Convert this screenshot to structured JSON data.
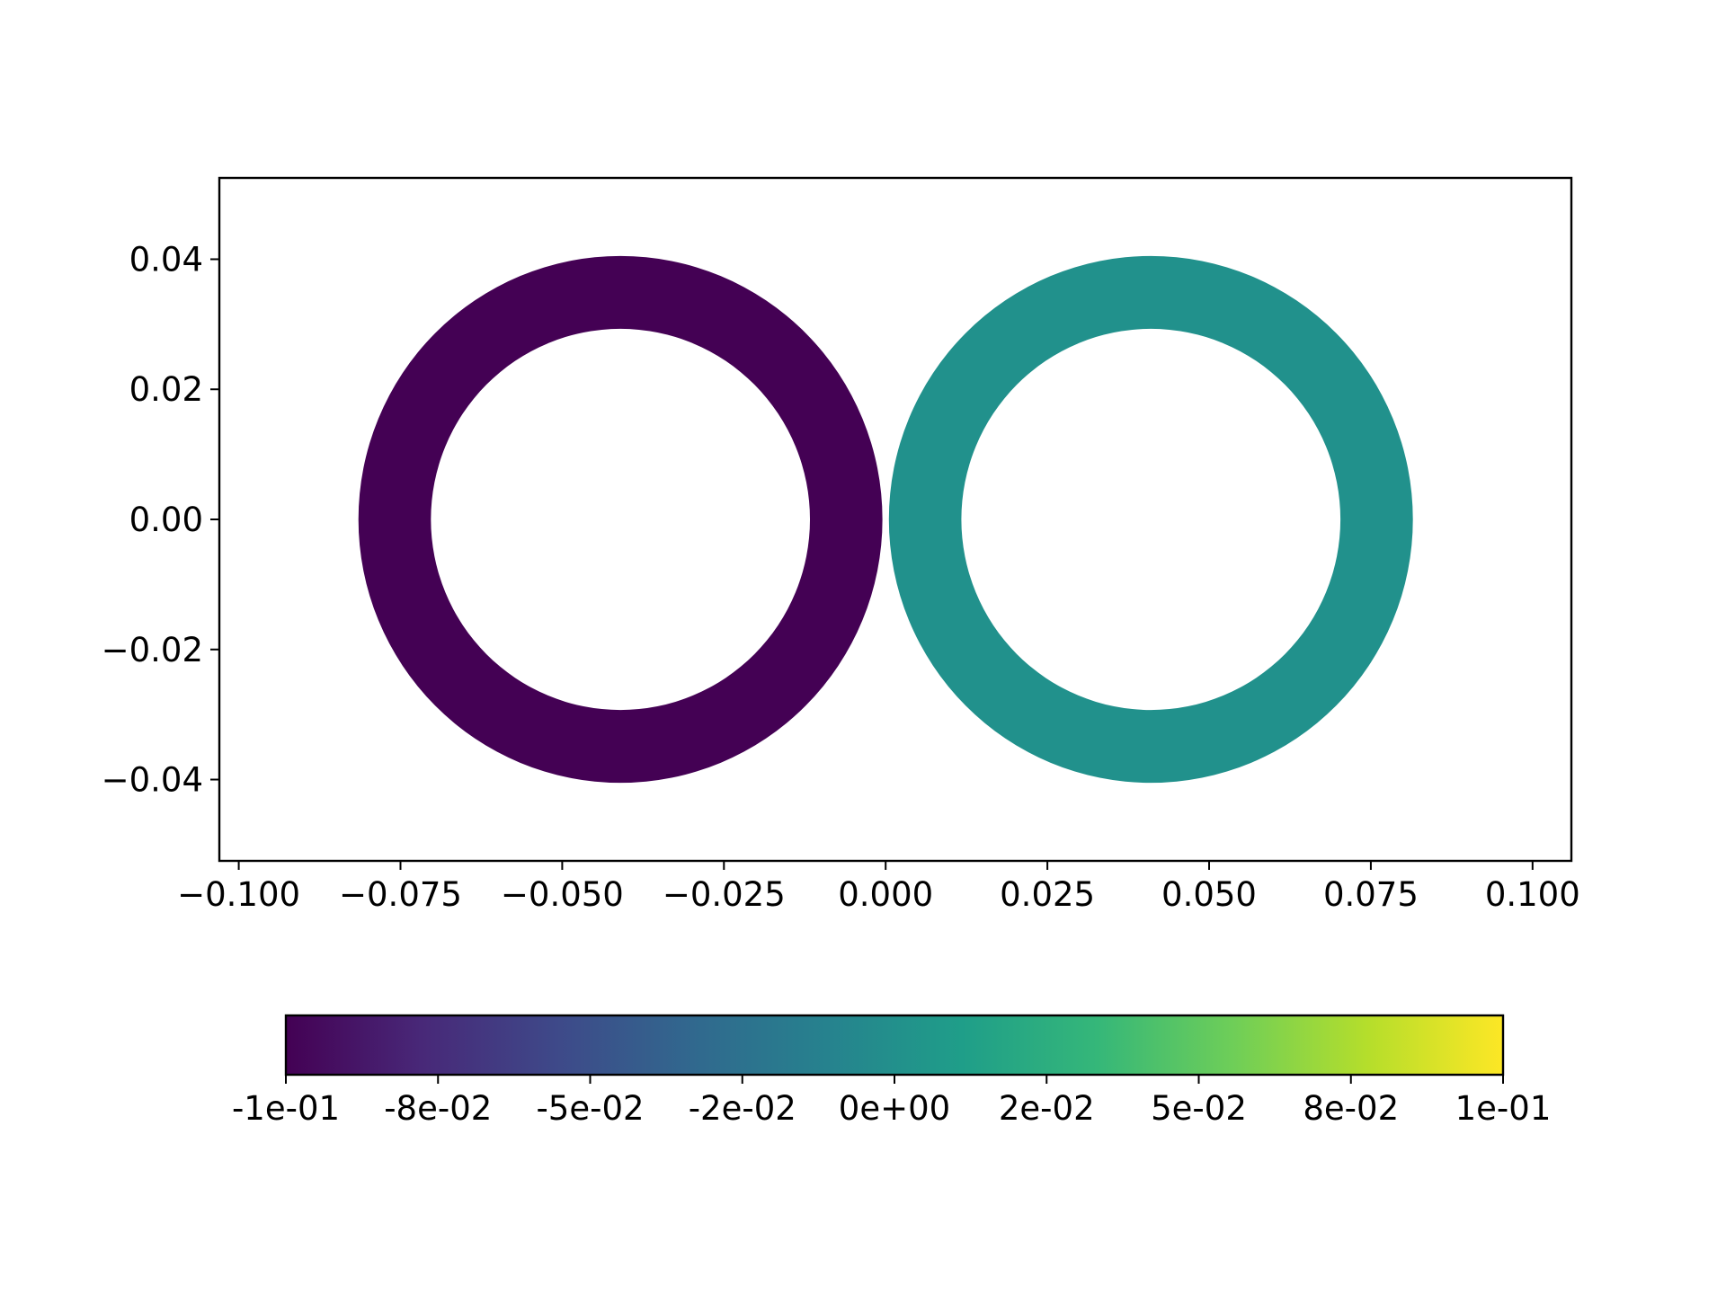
{
  "chart_data": {
    "type": "scatter",
    "description_markers": "filled annuli colored by value",
    "title": "",
    "xlabel": "",
    "ylabel": "",
    "xlim": [
      -0.103,
      0.106
    ],
    "ylim": [
      -0.0525,
      0.0525
    ],
    "grid": false,
    "x_ticks": [
      -0.1,
      -0.075,
      -0.05,
      -0.025,
      0.0,
      0.025,
      0.05,
      0.075,
      0.1
    ],
    "x_tick_labels": [
      "−0.100",
      "−0.075",
      "−0.050",
      "−0.025",
      "0.000",
      "0.025",
      "0.050",
      "0.075",
      "0.100"
    ],
    "y_ticks": [
      0.04,
      0.02,
      0.0,
      -0.02,
      -0.04
    ],
    "y_tick_labels": [
      "0.04",
      "0.02",
      "0.00",
      "−0.02",
      "−0.04"
    ],
    "rings": [
      {
        "cx": -0.041,
        "cy": 0.0,
        "r_outer": 0.0405,
        "r_inner": 0.0293,
        "value": -0.1,
        "color": "#440154"
      },
      {
        "cx": 0.041,
        "cy": 0.0,
        "r_outer": 0.0405,
        "r_inner": 0.0293,
        "value": 0.0,
        "color": "#21918c"
      }
    ],
    "colorbar": {
      "orientation": "horizontal",
      "colormap": "viridis",
      "vmin": -0.1,
      "vmax": 0.1,
      "ticks": [
        -0.1,
        -0.075,
        -0.05,
        -0.025,
        0.0,
        0.025,
        0.05,
        0.075,
        0.1
      ],
      "tick_labels": [
        "-1e-01",
        "-8e-02",
        "-5e-02",
        "-2e-02",
        "0e+00",
        "2e-02",
        "5e-02",
        "8e-02",
        "1e-01"
      ],
      "stops": [
        "#440154",
        "#482878",
        "#3e4989",
        "#31688e",
        "#26828e",
        "#1f9e89",
        "#35b779",
        "#6ece58",
        "#b5de2b",
        "#fde725"
      ]
    }
  }
}
